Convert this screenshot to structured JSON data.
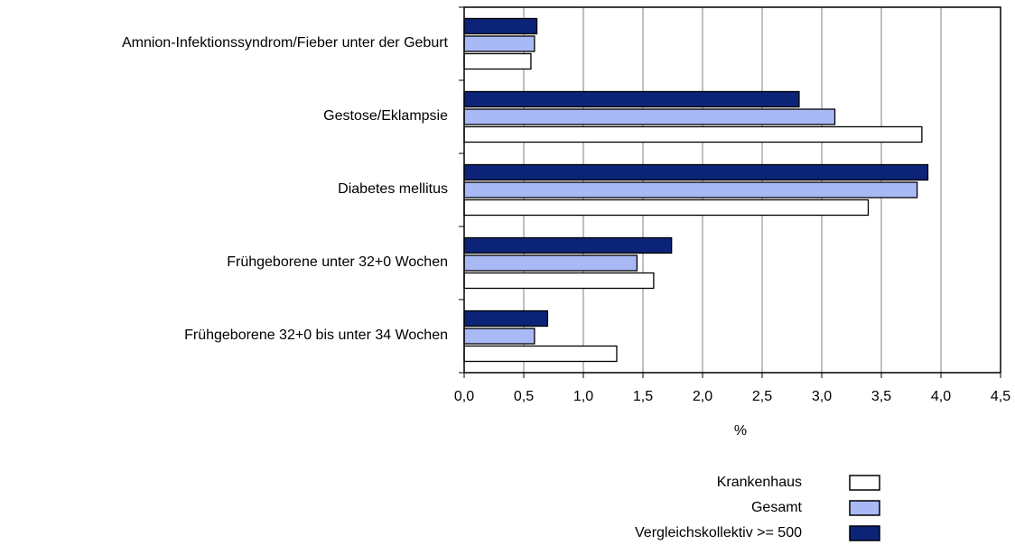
{
  "chart_data": {
    "type": "hbar",
    "categories": [
      "Amnion-Infektionssyndrom/Fieber unter der Geburt",
      "Gestose/Eklampsie",
      "Diabetes mellitus",
      "Frühgeborene unter 32+0 Wochen",
      "Frühgeborene 32+0 bis unter 34 Wochen"
    ],
    "series": [
      {
        "name": "Krankenhaus",
        "color": "#ffffff",
        "values": [
          0.56,
          3.84,
          3.39,
          1.59,
          1.28
        ]
      },
      {
        "name": "Gesamt",
        "color": "#a9b9f5",
        "values": [
          0.59,
          3.11,
          3.8,
          1.45,
          0.59
        ]
      },
      {
        "name": "Vergleichskollektiv >= 500",
        "color": "#0c2478",
        "values": [
          0.61,
          2.81,
          3.89,
          1.74,
          0.7
        ]
      }
    ],
    "xlabel": "%",
    "xlim": [
      0,
      4.5
    ],
    "xticks": [
      {
        "value": 0,
        "label": "0,0"
      },
      {
        "value": 0.5,
        "label": "0,5"
      },
      {
        "value": 1,
        "label": "1,0"
      },
      {
        "value": 1.5,
        "label": "1,5"
      },
      {
        "value": 2,
        "label": "2,0"
      },
      {
        "value": 2.5,
        "label": "2,5"
      },
      {
        "value": 3,
        "label": "3,0"
      },
      {
        "value": 3.5,
        "label": "3,5"
      },
      {
        "value": 4,
        "label": "4,0"
      },
      {
        "value": 4.5,
        "label": "4,5"
      }
    ],
    "grid": true,
    "legend": "bottom-right"
  }
}
